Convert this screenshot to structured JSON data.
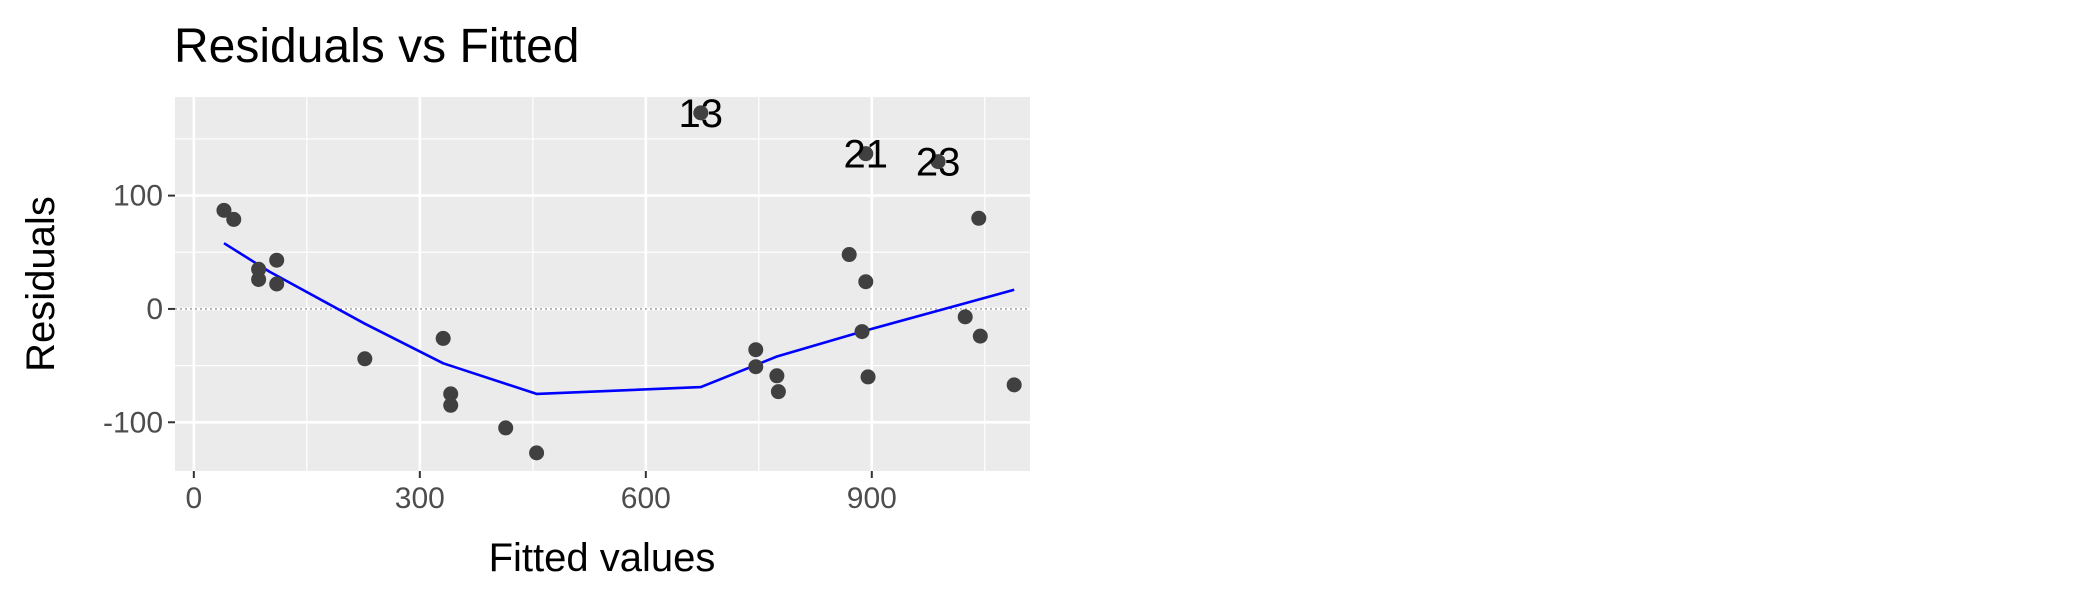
{
  "chart_data": {
    "type": "scatter",
    "title": "Residuals vs Fitted",
    "xlabel": "Fitted values",
    "ylabel": "Residuals",
    "xlim": [
      -25,
      1110
    ],
    "ylim": [
      -143,
      187
    ],
    "x_ticks": [
      0,
      300,
      600,
      900
    ],
    "x_tick_labels": [
      "0",
      "300",
      "600",
      "900"
    ],
    "y_ticks": [
      -100,
      0,
      100
    ],
    "y_tick_labels": [
      "-100",
      "0",
      "100"
    ],
    "grid": true,
    "legend": "none",
    "reference_line_y": 0,
    "points": [
      {
        "x": 40,
        "y": 87
      },
      {
        "x": 53,
        "y": 79
      },
      {
        "x": 86,
        "y": 35
      },
      {
        "x": 86,
        "y": 26
      },
      {
        "x": 110,
        "y": 43
      },
      {
        "x": 110,
        "y": 22
      },
      {
        "x": 227,
        "y": -44
      },
      {
        "x": 331,
        "y": -26
      },
      {
        "x": 341,
        "y": -75
      },
      {
        "x": 341,
        "y": -85
      },
      {
        "x": 414,
        "y": -105
      },
      {
        "x": 455,
        "y": -127
      },
      {
        "x": 673,
        "y": 173,
        "label": "13"
      },
      {
        "x": 746,
        "y": -36
      },
      {
        "x": 746,
        "y": -51
      },
      {
        "x": 774,
        "y": -59
      },
      {
        "x": 776,
        "y": -73
      },
      {
        "x": 870,
        "y": 48
      },
      {
        "x": 887,
        "y": -20
      },
      {
        "x": 892,
        "y": 137,
        "label": "21"
      },
      {
        "x": 892,
        "y": 24
      },
      {
        "x": 895,
        "y": -60
      },
      {
        "x": 988,
        "y": 130,
        "label": "23"
      },
      {
        "x": 1024,
        "y": -7
      },
      {
        "x": 1042,
        "y": 80
      },
      {
        "x": 1044,
        "y": -24
      },
      {
        "x": 1089,
        "y": -67
      }
    ],
    "smooth_line": [
      {
        "x": 40,
        "y": 58
      },
      {
        "x": 100,
        "y": 33
      },
      {
        "x": 227,
        "y": -13
      },
      {
        "x": 331,
        "y": -48
      },
      {
        "x": 455,
        "y": -75
      },
      {
        "x": 673,
        "y": -69
      },
      {
        "x": 774,
        "y": -42
      },
      {
        "x": 892,
        "y": -19
      },
      {
        "x": 1024,
        "y": 5
      },
      {
        "x": 1089,
        "y": 17
      }
    ],
    "colors": {
      "panel_background": "#ebebeb",
      "grid_major": "#ffffff",
      "points": "#404040",
      "smooth_line": "#0000ff",
      "reference_line": "#808080",
      "tick_label": "#4d4d4d"
    }
  }
}
